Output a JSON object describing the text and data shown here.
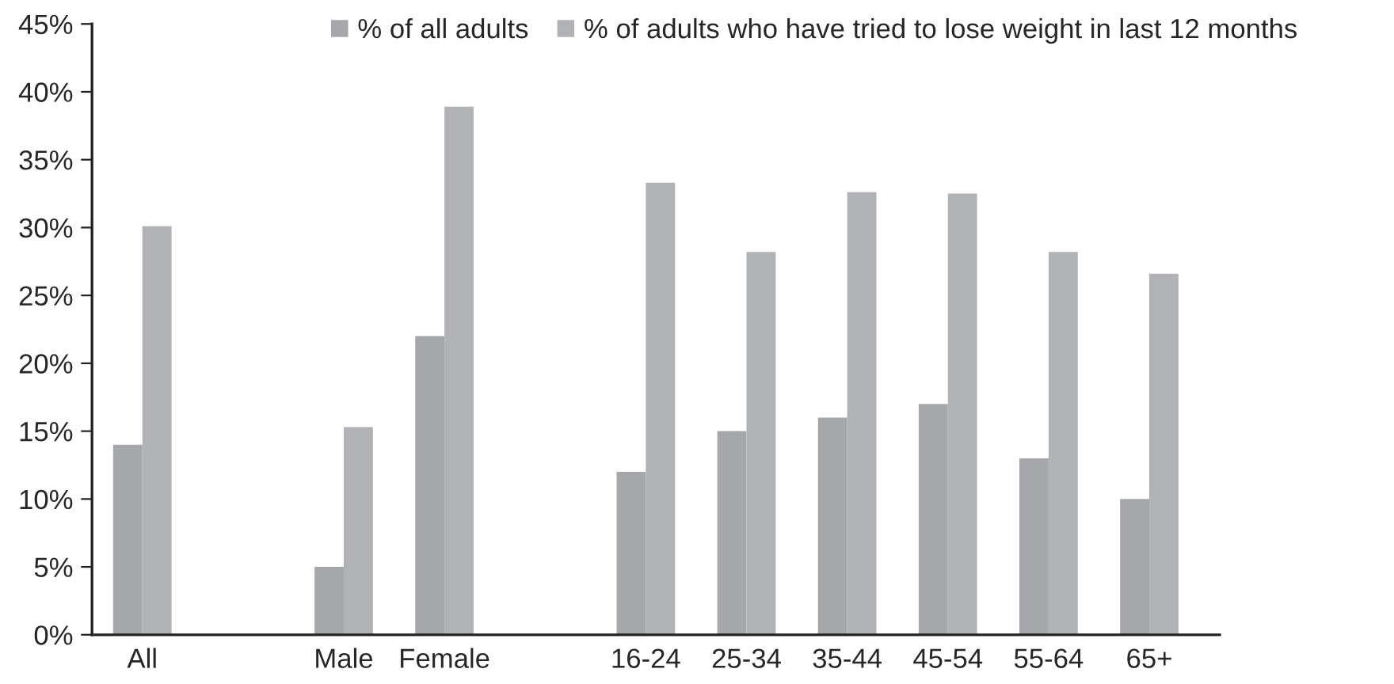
{
  "chart_data": {
    "type": "bar",
    "categories": [
      "All",
      null,
      "Male",
      "Female",
      null,
      "16-24",
      "25-34",
      "35-44",
      "45-54",
      "55-64",
      "65+"
    ],
    "series": [
      {
        "name": "% of all adults",
        "color": "#a6a7aa",
        "values": [
          14,
          null,
          5,
          22,
          null,
          12,
          15,
          16,
          17,
          13,
          10
        ]
      },
      {
        "name": "% of adults who have tried to lose weight in last 12 months",
        "color": "#b1b2b5",
        "values": [
          30.1,
          null,
          15.3,
          38.9,
          null,
          33.3,
          28.2,
          32.6,
          32.5,
          28.2,
          26.6
        ]
      }
    ],
    "ylim": [
      0,
      45
    ],
    "yticks": [
      {
        "value": 0,
        "label": "0%"
      },
      {
        "value": 5,
        "label": "5%"
      },
      {
        "value": 10,
        "label": "10%"
      },
      {
        "value": 15,
        "label": "15%"
      },
      {
        "value": 20,
        "label": "20%"
      },
      {
        "value": 25,
        "label": "25%"
      },
      {
        "value": 30,
        "label": "30%"
      },
      {
        "value": 35,
        "label": "35%"
      },
      {
        "value": 40,
        "label": "40%"
      },
      {
        "value": 45,
        "label": "45%"
      }
    ],
    "grid": false,
    "legend": "top"
  }
}
